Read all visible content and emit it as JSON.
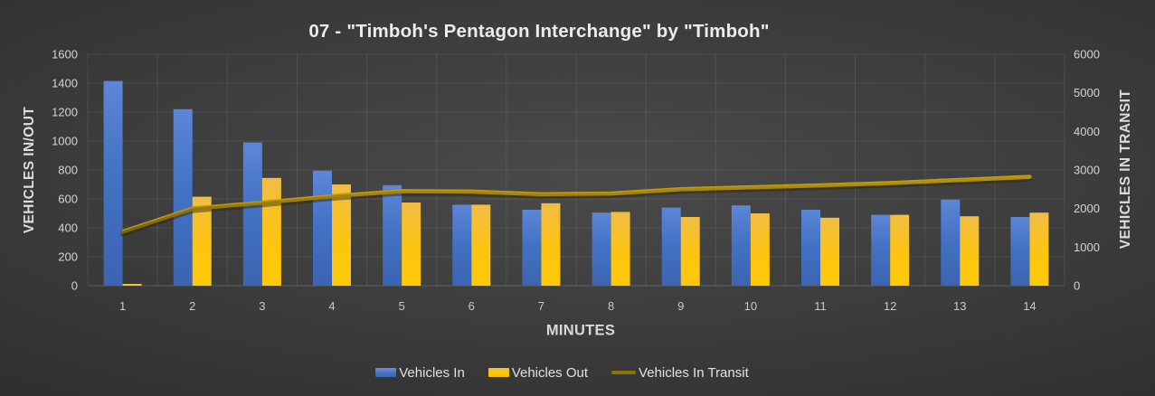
{
  "title": "07 - \"Timboh's Pentagon Interchange\" by \"Timboh\"",
  "legend": {
    "position": "bottom",
    "items": [
      {
        "label": "Vehicles In",
        "swatch": "bar",
        "color": "#4472c4"
      },
      {
        "label": "Vehicles Out",
        "swatch": "bar",
        "color": "#ffc000"
      },
      {
        "label": "Vehicles In Transit",
        "swatch": "line",
        "color": "#8f7306"
      }
    ]
  },
  "colors": {
    "background_center": "#4a4a4a",
    "background_edge": "#232323",
    "gridline": "rgba(255,255,255,0.09)",
    "baseline": "rgba(255,255,255,0.18)",
    "tick_text": "#d4d4d4",
    "title_text": "#ececec",
    "bar_blue": "#4472c4",
    "bar_gold": "#ffc000",
    "line_dark_gold": "#8f7306"
  },
  "chart_data": {
    "type": "bar",
    "subtype": "combo bar+line, dual y-axes, dark style",
    "title": "07 - \"Timboh's Pentagon Interchange\" by \"Timboh\"",
    "xlabel": "MINUTES",
    "categories": [
      "1",
      "2",
      "3",
      "4",
      "5",
      "6",
      "7",
      "8",
      "9",
      "10",
      "11",
      "12",
      "13",
      "14"
    ],
    "series": [
      {
        "name": "Vehicles In",
        "type": "bar",
        "axis": "left",
        "color": "#4472c4",
        "values": [
          1415,
          1220,
          990,
          795,
          695,
          560,
          525,
          505,
          540,
          555,
          525,
          490,
          595,
          475
        ]
      },
      {
        "name": "Vehicles Out",
        "type": "bar",
        "axis": "left",
        "color": "#ffc000",
        "values": [
          10,
          615,
          745,
          700,
          575,
          560,
          570,
          510,
          475,
          500,
          470,
          490,
          480,
          505
        ]
      },
      {
        "name": "Vehicles In Transit",
        "type": "line",
        "axis": "right",
        "color": "#8f7306",
        "values": [
          1400,
          2000,
          2150,
          2320,
          2450,
          2440,
          2370,
          2390,
          2500,
          2550,
          2600,
          2660,
          2740,
          2820
        ]
      }
    ],
    "left_axis": {
      "label": "VEHICLES IN/OUT",
      "range": [
        0,
        1600
      ],
      "step": 200,
      "ticks": [
        0,
        200,
        400,
        600,
        800,
        1000,
        1200,
        1400,
        1600
      ]
    },
    "right_axis": {
      "label": "VEHICLES IN TRANSIT",
      "range": [
        0,
        6000
      ],
      "step": 1000,
      "ticks": [
        0,
        1000,
        2000,
        3000,
        4000,
        5000,
        6000
      ]
    },
    "grid": true,
    "legend_position": "bottom"
  }
}
